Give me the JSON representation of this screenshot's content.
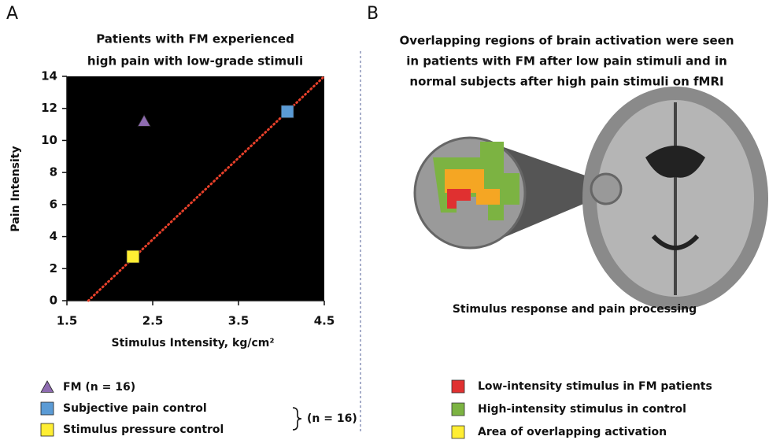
{
  "chart_data": {
    "type": "scatter",
    "panel_label": "A",
    "title": [
      "Patients with FM experienced",
      "high pain with low-grade stimuli"
    ],
    "x_label": "Stimulus Intensity, kg/cm²",
    "y_label": "Pain Intensity",
    "xlim": [
      1.5,
      4.5
    ],
    "xticks": [
      1.5,
      2.5,
      3.5,
      4.5
    ],
    "ylim": [
      0,
      14
    ],
    "yticks": [
      0,
      2,
      4,
      6,
      8,
      10,
      12,
      14
    ],
    "background": "#000000",
    "series": [
      {
        "name": "FM (n = 16)",
        "color": "#8e6bb0",
        "marker": "triangle",
        "x": [
          2.4
        ],
        "values": [
          11.2
        ]
      },
      {
        "name": "Subjective pain control",
        "color": "#5b9bd5",
        "marker": "square",
        "x": [
          4.07
        ],
        "values": [
          11.8
        ]
      },
      {
        "name": "Stimulus pressure control",
        "color": "#ffee33",
        "marker": "square",
        "x": [
          2.27
        ],
        "values": [
          2.75
        ]
      }
    ],
    "legend_group_label": "(n = 16)",
    "trendline": {
      "color": "#e8402a",
      "x": [
        1.75,
        4.5
      ],
      "y": [
        0,
        14
      ]
    }
  },
  "panel_b": {
    "label": "B",
    "title": [
      "Overlapping regions of brain activation were seen",
      "in patients with FM after low pain stimuli and in",
      "normal subjects after high pain stimuli on fMRI"
    ],
    "caption": "Stimulus response and pain processing",
    "legend": [
      {
        "label": "Low-intensity stimulus in FM patients",
        "color": "#e03030"
      },
      {
        "label": "High-intensity stimulus in control",
        "color": "#7cb342"
      },
      {
        "label": "Area of overlapping activation",
        "color": "#ffee33"
      }
    ]
  }
}
